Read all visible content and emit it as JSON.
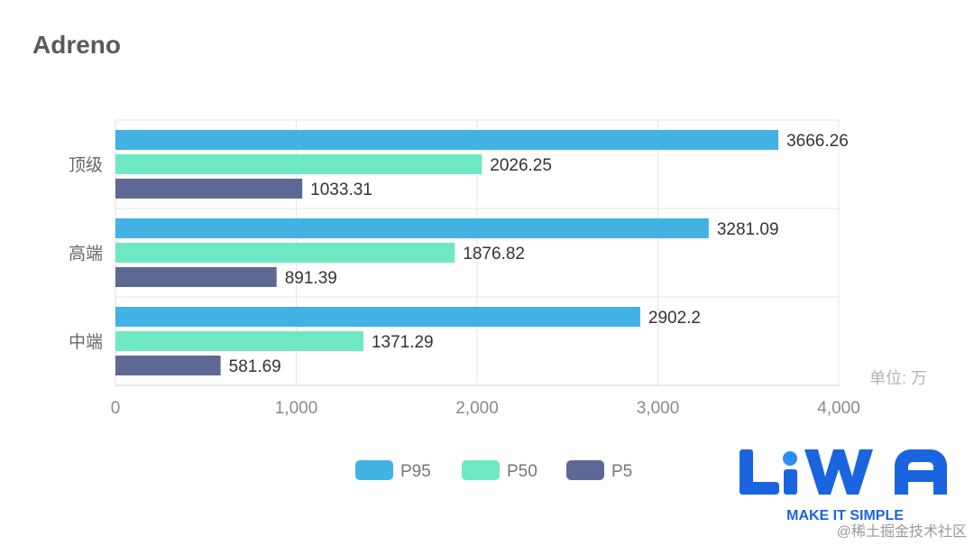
{
  "title": "Adreno",
  "chart_data": {
    "type": "bar",
    "orientation": "horizontal",
    "categories": [
      "顶级",
      "高端",
      "中端"
    ],
    "series": [
      {
        "name": "P95",
        "values": [
          3666.26,
          3281.09,
          2902.2
        ],
        "labels": [
          "3666.26",
          "3281.09",
          "2902.2"
        ],
        "color": "#41b2e2"
      },
      {
        "name": "P50",
        "values": [
          2026.25,
          1876.82,
          1371.29
        ],
        "labels": [
          "2026.25",
          "1876.82",
          "1371.29"
        ],
        "color": "#6ee8c4"
      },
      {
        "name": "P5",
        "values": [
          1033.31,
          891.39,
          581.69
        ],
        "labels": [
          "1033.31",
          "891.39",
          "581.69"
        ],
        "color": "#5d6994"
      }
    ],
    "xlim": [
      0,
      4000
    ],
    "xticks": [
      0,
      1000,
      2000,
      3000,
      4000
    ],
    "xtick_labels": [
      "0",
      "1,000",
      "2,000",
      "3,000",
      "4,000"
    ],
    "unit_label": "单位: 万",
    "grid": true,
    "legend_position": "bottom-center"
  },
  "logo": {
    "text": "LiWA",
    "tagline": "MAKE IT SIMPLE",
    "color": "#1b64e0"
  },
  "watermark": "@稀土掘金技术社区"
}
